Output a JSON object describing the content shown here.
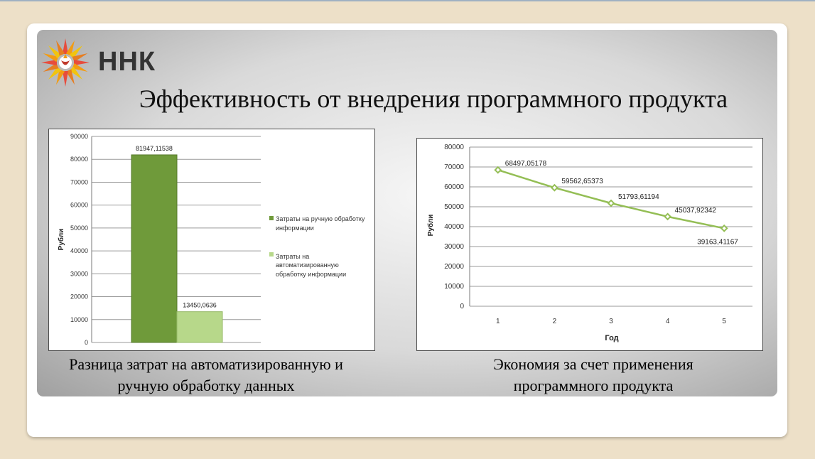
{
  "brand": {
    "name": "ННК"
  },
  "slide": {
    "title": "Эффективность от внедрения программного продукта"
  },
  "captions": {
    "left": [
      "Разница затрат на автоматизированную и",
      "ручную обработку данных"
    ],
    "right": [
      "Экономия за счет применения",
      "программного продукта"
    ]
  },
  "colors": {
    "page_background": "#ede0c8",
    "bar_manual": "#6f9a3a",
    "bar_auto": "#b7d88a",
    "line": "#94be55"
  },
  "chart_data": [
    {
      "type": "bar",
      "ylabel": "Рубли",
      "xlabel": "",
      "ylim": [
        0,
        90000
      ],
      "yticks": [
        0,
        10000,
        20000,
        30000,
        40000,
        50000,
        60000,
        70000,
        80000,
        90000
      ],
      "grid": true,
      "legend_position": "right",
      "series": [
        {
          "name": "Затраты на ручную обработку информации",
          "values": [
            81947.11538
          ],
          "label": "81947,11538",
          "color": "#6f9a3a"
        },
        {
          "name": "Затраты на автоматизированную обработку информации",
          "values": [
            13450.0636
          ],
          "label": "13450,0636",
          "color": "#b7d88a"
        }
      ]
    },
    {
      "type": "line",
      "xlabel": "Год",
      "ylabel": "Рубли",
      "ylim": [
        0,
        80000
      ],
      "yticks": [
        0,
        10000,
        20000,
        30000,
        40000,
        50000,
        60000,
        70000,
        80000
      ],
      "grid": true,
      "x": [
        1,
        2,
        3,
        4,
        5
      ],
      "series": [
        {
          "values": [
            68497.05178,
            59562.65373,
            51793.61194,
            45037.92342,
            39163.41167
          ],
          "labels": [
            "68497,05178",
            "59562,65373",
            "51793,61194",
            "45037,92342",
            "39163,41167"
          ],
          "color": "#94be55"
        }
      ]
    }
  ]
}
